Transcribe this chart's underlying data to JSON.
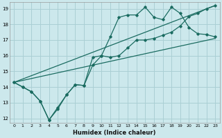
{
  "title": "",
  "xlabel": "Humidex (Indice chaleur)",
  "ylabel": "",
  "bg_color": "#cce8ec",
  "grid_color": "#aacfd4",
  "line_color": "#1a6b60",
  "xlim": [
    -0.5,
    23.5
  ],
  "ylim": [
    11.7,
    19.4
  ],
  "xticks": [
    0,
    1,
    2,
    3,
    4,
    5,
    6,
    7,
    8,
    9,
    10,
    11,
    12,
    13,
    14,
    15,
    16,
    17,
    18,
    19,
    20,
    21,
    22,
    23
  ],
  "yticks": [
    12,
    13,
    14,
    15,
    16,
    17,
    18,
    19
  ],
  "line1_x": [
    0,
    1,
    2,
    3,
    4,
    5,
    6,
    7,
    8,
    9,
    10,
    11,
    12,
    13,
    14,
    15,
    16,
    17,
    18,
    19,
    20,
    21,
    22,
    23
  ],
  "line1_y": [
    14.3,
    14.0,
    13.7,
    13.1,
    11.9,
    12.6,
    13.5,
    14.15,
    14.1,
    15.9,
    16.0,
    17.2,
    18.45,
    18.6,
    18.6,
    19.1,
    18.45,
    18.3,
    19.1,
    18.7,
    17.8,
    17.4,
    17.35,
    17.2
  ],
  "line2_x": [
    0,
    1,
    2,
    3,
    4,
    5,
    6,
    7,
    8,
    9,
    10,
    11,
    12,
    13,
    14,
    15,
    16,
    17,
    18,
    19,
    20,
    21,
    22,
    23
  ],
  "line2_y": [
    14.3,
    14.0,
    13.7,
    13.1,
    11.9,
    12.7,
    13.5,
    14.15,
    14.1,
    15.4,
    16.0,
    15.9,
    16.0,
    16.5,
    17.0,
    17.0,
    17.1,
    17.3,
    17.5,
    17.9,
    18.5,
    18.7,
    19.0,
    19.2
  ],
  "line3_x": [
    0,
    23
  ],
  "line3_y": [
    14.3,
    17.1
  ],
  "line4_x": [
    0,
    23
  ],
  "line4_y": [
    14.3,
    19.2
  ]
}
